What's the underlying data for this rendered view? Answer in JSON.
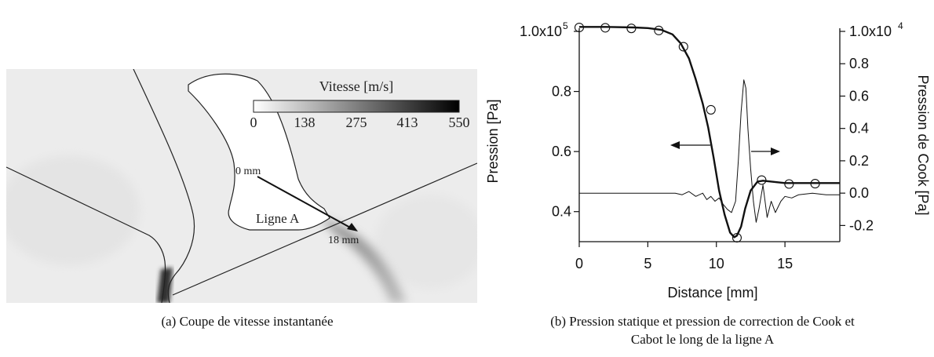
{
  "panel_a": {
    "colorbar": {
      "title": "Vitesse [m/s]",
      "ticks": [
        "0",
        "138",
        "275",
        "413",
        "550"
      ]
    },
    "labels": {
      "start": "0 mm",
      "end": "18 mm",
      "line": "Ligne A"
    },
    "caption": "(a)  Coupe de vitesse instantanée"
  },
  "panel_b": {
    "caption_line1": "(b)  Pression statique et pression de correction de Cook et",
    "caption_line2": "Cabot le long de la ligne A"
  },
  "chart_data": {
    "type": "line",
    "xlabel": "Distance [mm]",
    "ylabel_left": "Pression [Pa]",
    "ylabel_right": "Pression de Cook [Pa]",
    "xlim": [
      0,
      19
    ],
    "ylim_left": [
      0.3,
      1.0
    ],
    "ylim_right": [
      -0.3,
      1.0
    ],
    "x_ticks": [
      0,
      5,
      10,
      15
    ],
    "y_ticks_left": [
      {
        "value": 0.4,
        "label": "0.4"
      },
      {
        "value": 0.6,
        "label": "0.6"
      },
      {
        "value": 0.8,
        "label": "0.8"
      },
      {
        "value": 1.0,
        "label": "1.0x10",
        "exp": "5"
      }
    ],
    "y_ticks_right": [
      {
        "value": -0.2,
        "label": "-0.2"
      },
      {
        "value": 0.0,
        "label": "0.0"
      },
      {
        "value": 0.2,
        "label": "0.2"
      },
      {
        "value": 0.4,
        "label": "0.4"
      },
      {
        "value": 0.6,
        "label": "0.6"
      },
      {
        "value": 0.8,
        "label": "0.8"
      },
      {
        "value": 1.0,
        "label": "1.0x10",
        "exp": "4"
      }
    ],
    "series": [
      {
        "axis": "left",
        "style": "thick-line",
        "x": [
          0,
          2,
          4,
          5,
          6,
          6.8,
          7.4,
          8.0,
          8.5,
          9.0,
          9.4,
          9.8,
          10.2,
          10.6,
          11.0,
          11.3,
          11.5,
          11.8,
          12.1,
          12.5,
          13.0,
          13.4,
          14,
          15,
          16,
          17,
          18,
          19
        ],
        "y": [
          1.015,
          1.015,
          1.013,
          1.011,
          1.005,
          0.99,
          0.96,
          0.91,
          0.84,
          0.76,
          0.68,
          0.58,
          0.47,
          0.39,
          0.33,
          0.315,
          0.32,
          0.35,
          0.41,
          0.47,
          0.5,
          0.503,
          0.5,
          0.495,
          0.495,
          0.495,
          0.495,
          0.495
        ]
      },
      {
        "axis": "left",
        "style": "circles",
        "x": [
          0,
          1.9,
          3.8,
          5.8,
          7.6,
          9.6,
          11.5,
          13.3,
          15.3,
          17.2
        ],
        "y": [
          1.013,
          1.012,
          1.01,
          1.003,
          0.949,
          0.739,
          0.313,
          0.505,
          0.492,
          0.493
        ]
      },
      {
        "axis": "right",
        "style": "thin-line",
        "x": [
          0,
          1,
          2,
          3,
          4,
          5,
          6,
          7,
          7.5,
          8,
          8.5,
          9,
          9.3,
          9.6,
          9.9,
          10.2,
          10.5,
          10.8,
          11.1,
          11.4,
          11.6,
          11.8,
          12.0,
          12.15,
          12.3,
          12.5,
          12.7,
          12.9,
          13.1,
          13.4,
          13.7,
          14.0,
          14.3,
          14.7,
          15,
          15.5,
          16,
          17,
          18,
          19
        ],
        "y": [
          0.0,
          0.0,
          0.0,
          0.0,
          0.0,
          0.0,
          0.0,
          0.0,
          -0.01,
          0.01,
          -0.02,
          0.0,
          -0.04,
          -0.02,
          -0.05,
          -0.03,
          -0.07,
          -0.1,
          -0.12,
          -0.05,
          0.2,
          0.5,
          0.7,
          0.65,
          0.4,
          0.15,
          -0.05,
          -0.18,
          -0.1,
          0.05,
          -0.15,
          -0.05,
          -0.12,
          -0.05,
          -0.02,
          -0.03,
          -0.01,
          0.0,
          -0.01,
          -0.01
        ]
      }
    ]
  }
}
